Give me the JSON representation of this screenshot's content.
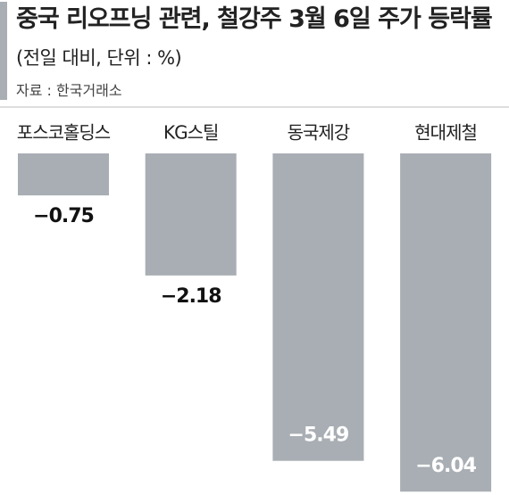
{
  "chart_data": {
    "type": "bar",
    "title": "중국 리오프닝 관련, 철강주 3월 6일 주가 등락률",
    "subtitle": "(전일 대비, 단위 : %)",
    "source": "자료 : 한국거래소",
    "categories": [
      "포스코홀딩스",
      "KG스틸",
      "동국제강",
      "현대제철"
    ],
    "values": [
      -0.75,
      -2.18,
      -5.49,
      -6.04
    ],
    "value_labels": [
      "−0.75",
      "−2.18",
      "−5.49",
      "−6.04"
    ],
    "color": "#a8aeb3",
    "ylim": [
      -6.1,
      0
    ]
  }
}
